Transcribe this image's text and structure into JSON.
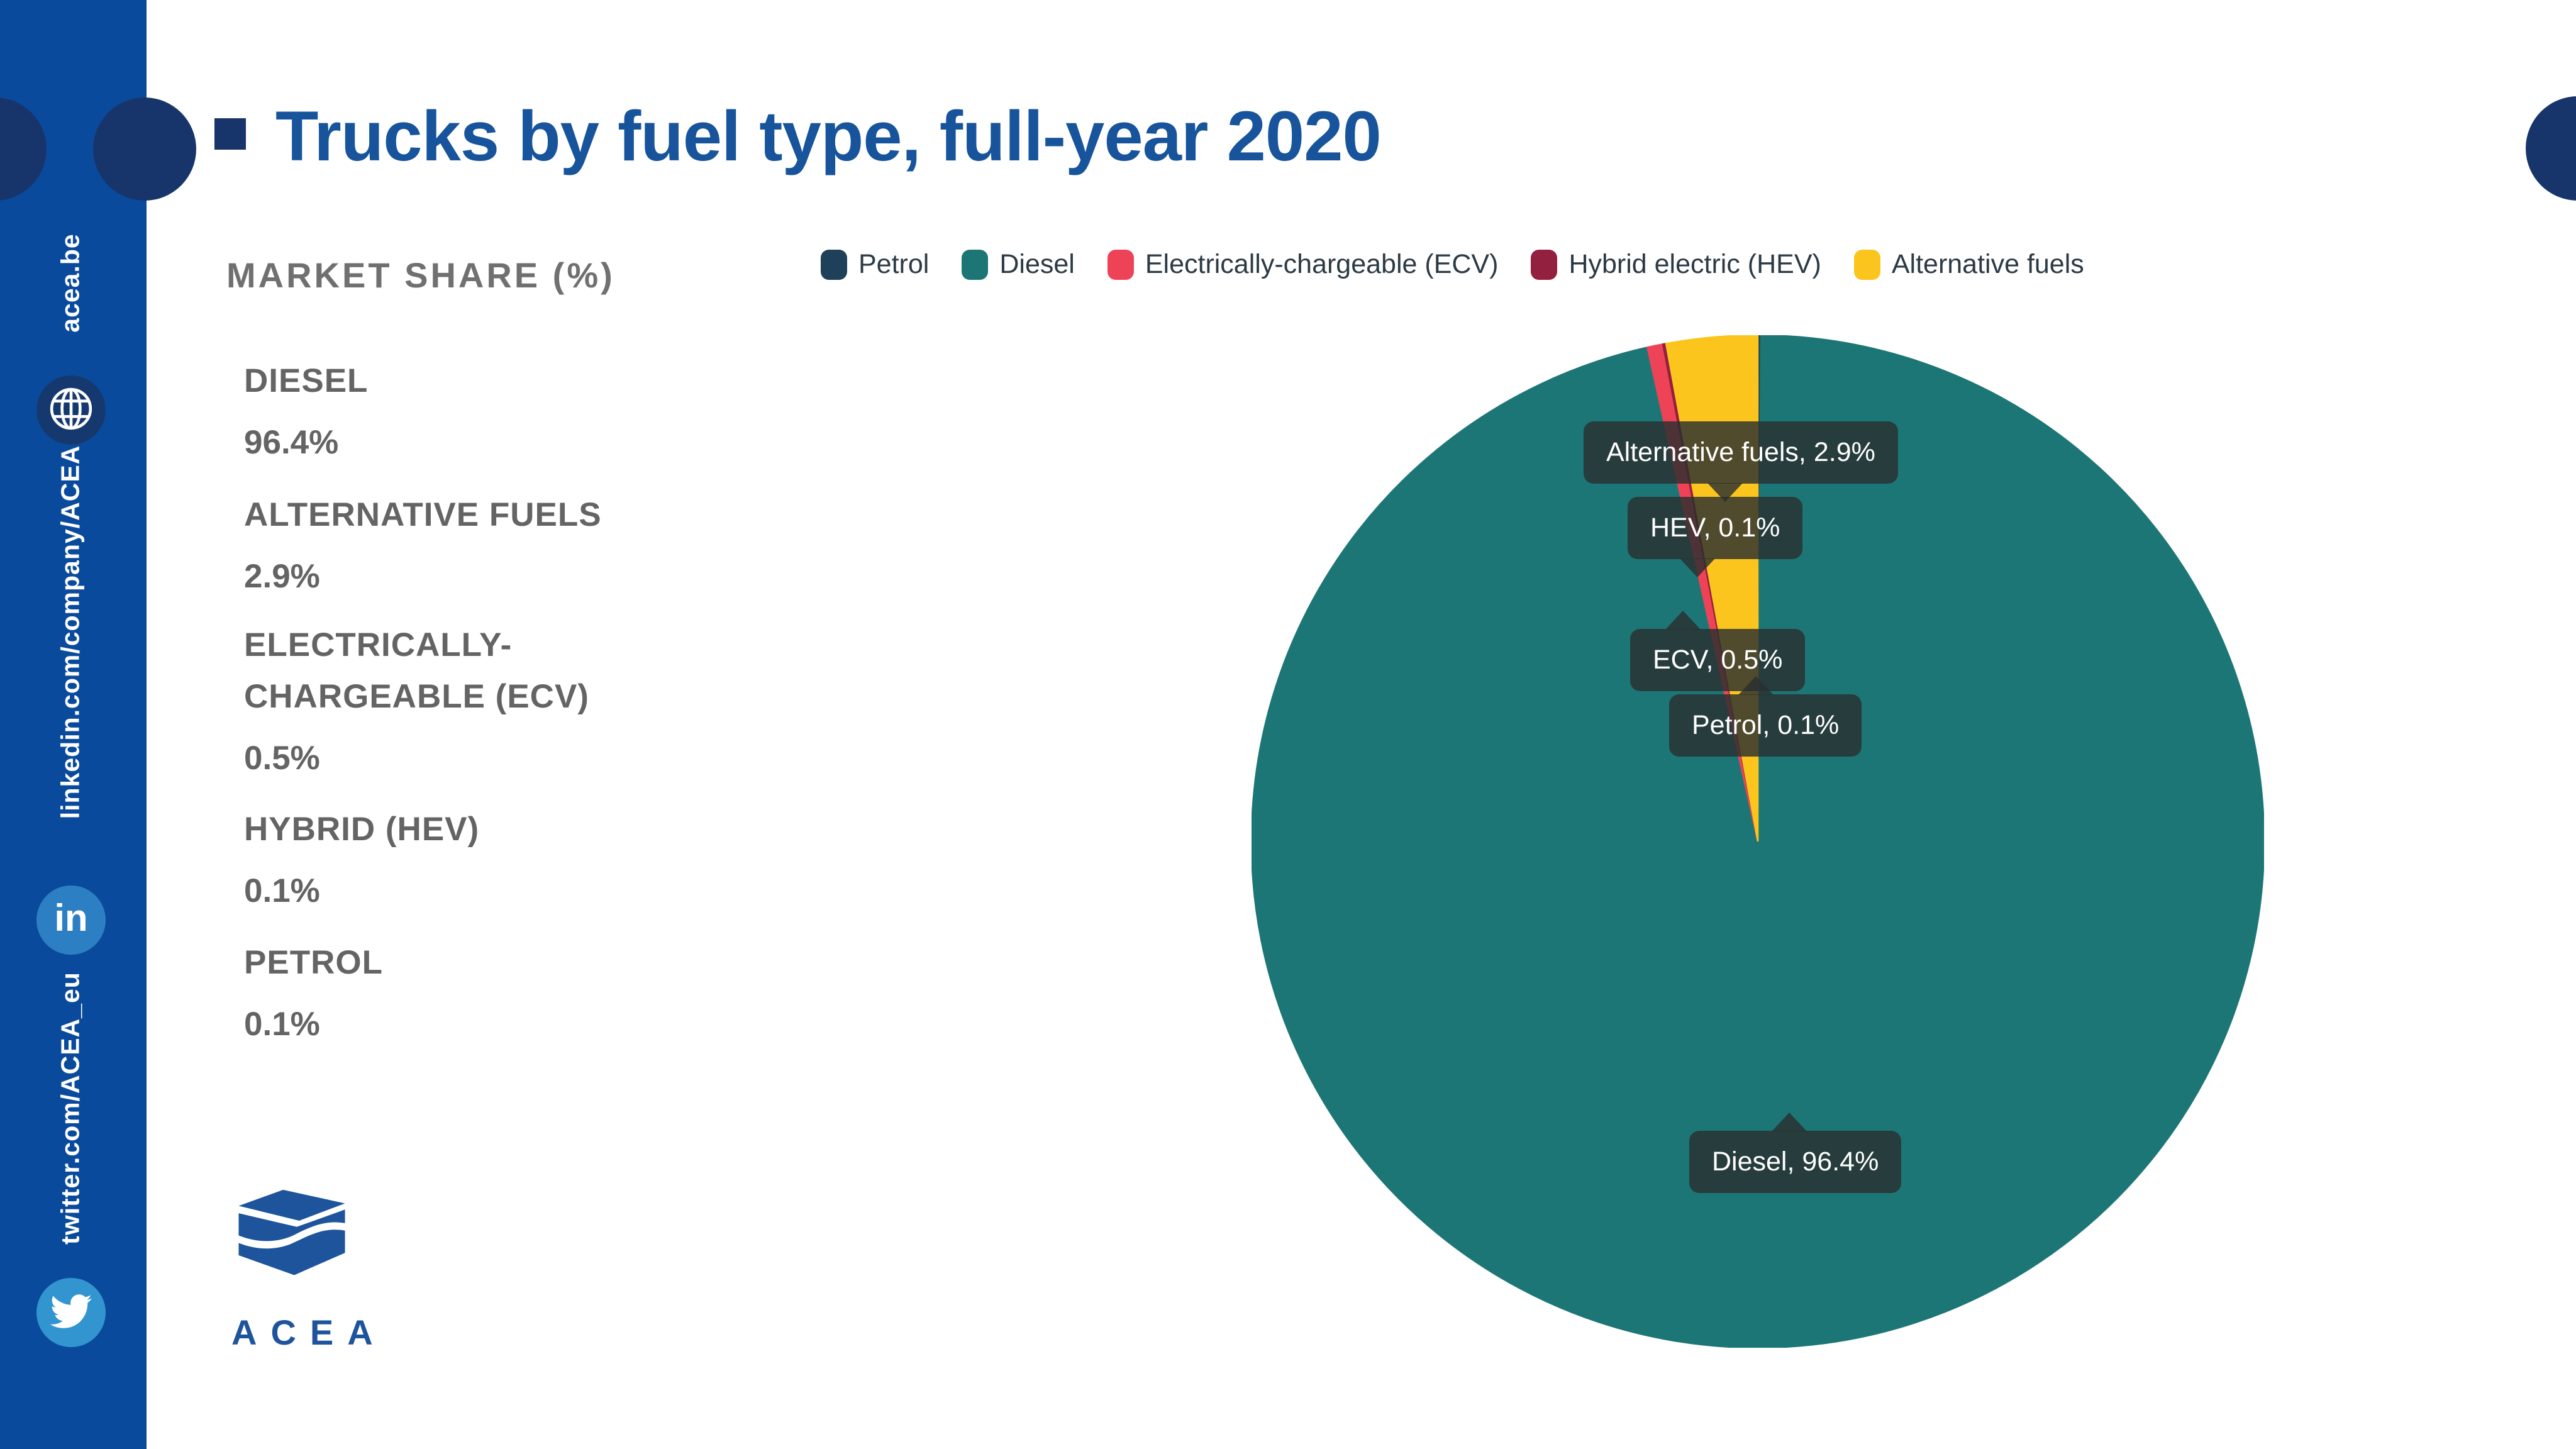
{
  "header": {
    "title": "Trucks by fuel type, full-year 2020",
    "title_color": "#17549b"
  },
  "sidebar": {
    "color": "#0a4a9c",
    "website_label": "acea.be",
    "linkedin_label": "linkedin.com/company/ACEA",
    "twitter_label": "twitter.com/ACEA_eu"
  },
  "market_share": {
    "heading": "MARKET SHARE (%)",
    "items": [
      {
        "label": "DIESEL",
        "value": "96.4%"
      },
      {
        "label": "ALTERNATIVE FUELS",
        "value": "2.9%"
      },
      {
        "label": "ELECTRICALLY-CHARGEABLE (ECV)",
        "value": "0.5%"
      },
      {
        "label": "HYBRID (HEV)",
        "value": "0.1%"
      },
      {
        "label": "PETROL",
        "value": "0.1%"
      }
    ]
  },
  "logo": {
    "text": "ACEA",
    "color": "#1d549c"
  },
  "legend": {
    "items": [
      {
        "label": "Petrol",
        "color": "#1e4058"
      },
      {
        "label": "Diesel",
        "color": "#1d7676"
      },
      {
        "label": "Electrically-chargeable (ECV)",
        "color": "#ee4356"
      },
      {
        "label": "Hybrid electric (HEV)",
        "color": "#93203f"
      },
      {
        "label": "Alternative fuels",
        "color": "#fbc51d"
      }
    ]
  },
  "chart_data": {
    "type": "pie",
    "title": "Trucks by fuel type, full-year 2020",
    "unit": "% market share",
    "direction": "clockwise",
    "start_angle_deg": 0,
    "series": [
      {
        "name": "Petrol",
        "value": 0.1,
        "color": "#1e4058"
      },
      {
        "name": "Diesel",
        "value": 96.4,
        "color": "#1d7676"
      },
      {
        "name": "Electrically-chargeable (ECV)",
        "value": 0.5,
        "color": "#ee4356"
      },
      {
        "name": "Hybrid electric (HEV)",
        "value": 0.1,
        "color": "#93203f"
      },
      {
        "name": "Alternative fuels",
        "value": 2.9,
        "color": "#fbc51d"
      }
    ],
    "callouts": [
      {
        "text": "Alternative fuels, 2.9%"
      },
      {
        "text": "HEV, 0.1%"
      },
      {
        "text": "ECV, 0.5%"
      },
      {
        "text": "Petrol, 0.1%"
      },
      {
        "text": "Diesel, 96.4%"
      }
    ]
  }
}
